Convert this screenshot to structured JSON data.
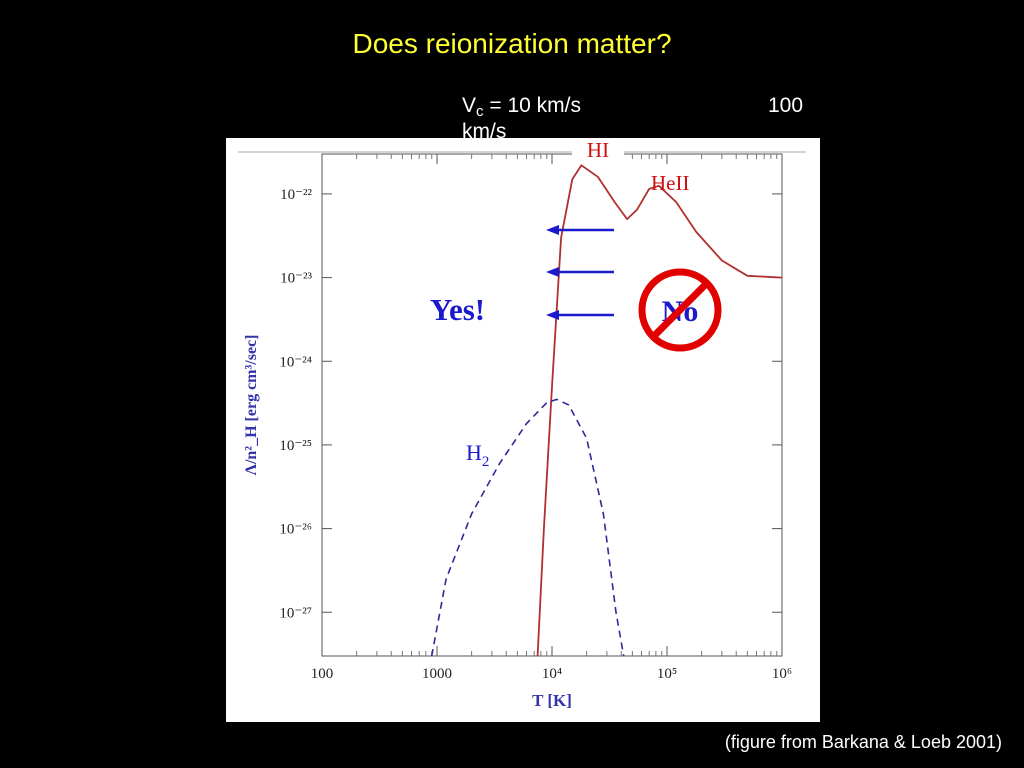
{
  "slide": {
    "title": "Does reionization matter?",
    "vc_label_main": "V",
    "vc_label_sub": "c",
    "vc_label_rest": " = 10 km/s",
    "vc_label_cut": "km/s",
    "vc_label_100": "100",
    "caption": "(figure from Barkana & Loeb 2001)"
  },
  "annotations": {
    "hi_label": "HI",
    "heii_label": "HeII",
    "h2_label_main": "H",
    "h2_label_sub": "2",
    "yes_label": "Yes!",
    "no_label": "No"
  },
  "colors": {
    "title": "#ffff33",
    "hi_curve": "#b03030",
    "h2_curve": "#2b2b9a",
    "arrows": "#1a1acc",
    "no_sign": "#e00000",
    "axis_labels": "#3333aa"
  },
  "chart_data": {
    "type": "line",
    "xlabel": "T [K]",
    "ylabel": "Λ/n²_H [erg cm³/sec]",
    "x_scale": "log",
    "y_scale": "log",
    "xlim": [
      100,
      1000000
    ],
    "ylim": [
      3e-28,
      3e-22
    ],
    "x_ticks": [
      {
        "value": 100,
        "label": "100"
      },
      {
        "value": 1000,
        "label": "1000"
      },
      {
        "value": 10000,
        "label": "10⁴"
      },
      {
        "value": 100000,
        "label": "10⁵"
      },
      {
        "value": 1000000,
        "label": "10⁶"
      }
    ],
    "y_ticks": [
      {
        "value": 1e-22,
        "label": "10⁻²²"
      },
      {
        "value": 1e-23,
        "label": "10⁻²³"
      },
      {
        "value": 1e-24,
        "label": "10⁻²⁴"
      },
      {
        "value": 1e-25,
        "label": "10⁻²⁵"
      },
      {
        "value": 1e-26,
        "label": "10⁻²⁶"
      },
      {
        "value": 1e-27,
        "label": "10⁻²⁷"
      }
    ],
    "series": [
      {
        "name": "HI",
        "style": "solid",
        "points": [
          [
            7500,
            3e-28
          ],
          [
            8500,
            1e-26
          ],
          [
            10000,
            5e-25
          ],
          [
            12000,
            3e-23
          ],
          [
            15000,
            1.5e-22
          ],
          [
            18000,
            2.2e-22
          ],
          [
            25000,
            1.6e-22
          ],
          [
            35000,
            8e-23
          ],
          [
            45000,
            5e-23
          ],
          [
            55000,
            6.5e-23
          ],
          [
            70000,
            1.15e-22
          ],
          [
            85000,
            1.25e-22
          ],
          [
            120000,
            8e-23
          ],
          [
            180000,
            3.5e-23
          ],
          [
            300000,
            1.6e-23
          ],
          [
            500000,
            1.05e-23
          ],
          [
            1000000,
            1e-23
          ]
        ]
      },
      {
        "name": "H2",
        "style": "dashed",
        "points": [
          [
            900,
            3e-28
          ],
          [
            1200,
            2.5e-27
          ],
          [
            2000,
            1.5e-26
          ],
          [
            3500,
            6e-26
          ],
          [
            6000,
            1.8e-25
          ],
          [
            9000,
            3.2e-25
          ],
          [
            11000,
            3.5e-25
          ],
          [
            14000,
            3e-25
          ],
          [
            20000,
            1.2e-25
          ],
          [
            28000,
            1.5e-26
          ],
          [
            36000,
            1e-27
          ],
          [
            42000,
            3e-28
          ]
        ]
      }
    ]
  }
}
